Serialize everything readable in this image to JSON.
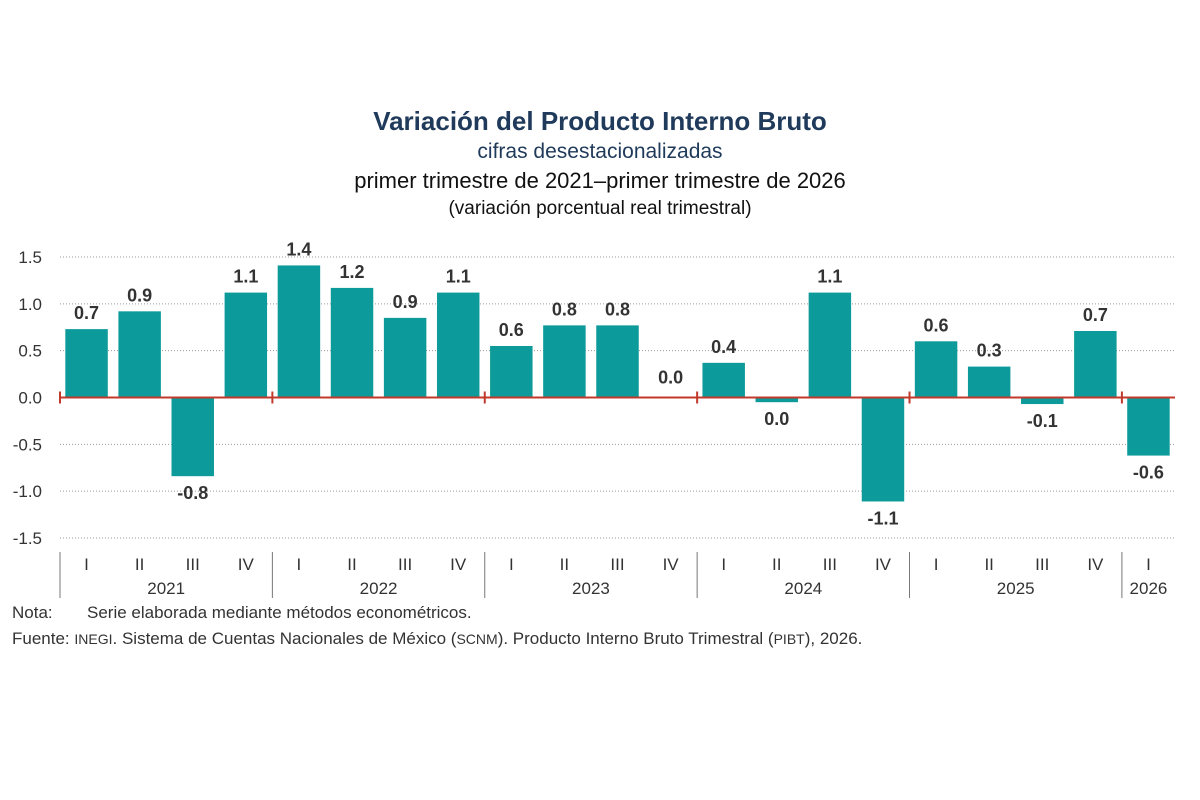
{
  "titles": {
    "title": "Variación del Producto Interno Bruto",
    "subtitle": "cifras desestacionalizadas",
    "period": "primer trimestre de 2021–primer trimestre de 2026",
    "unit": "(variación porcentual real trimestral)"
  },
  "chart_data": {
    "type": "bar",
    "categories": [
      "I",
      "II",
      "III",
      "IV",
      "I",
      "II",
      "III",
      "IV",
      "I",
      "II",
      "III",
      "IV",
      "I",
      "II",
      "III",
      "IV",
      "I",
      "II",
      "III",
      "IV",
      "I"
    ],
    "years": [
      "2021",
      "2022",
      "2023",
      "2024",
      "2025",
      "2026"
    ],
    "values": [
      0.73,
      0.92,
      -0.84,
      1.12,
      1.41,
      1.17,
      0.85,
      1.12,
      0.55,
      0.77,
      0.77,
      0.0,
      0.37,
      -0.05,
      1.12,
      -1.11,
      0.6,
      0.33,
      -0.07,
      0.71,
      -0.62
    ],
    "labels": [
      "0.7",
      "0.9",
      "-0.8",
      "1.1",
      "1.4",
      "1.2",
      "0.9",
      "1.1",
      "0.6",
      "0.8",
      "0.8",
      "0.0",
      "0.4",
      "0.0",
      "1.1",
      "-1.1",
      "0.6",
      "0.3",
      "-0.1",
      "0.7",
      "-0.6"
    ],
    "ylim": [
      -1.5,
      1.5
    ],
    "yticks": [
      "1.5",
      "1.0",
      "0.5",
      "0.0",
      "-0.5",
      "-1.0",
      "-1.5"
    ],
    "grid": true,
    "bar_color": "#0d9a9a",
    "zero_line_color": "#c0392b"
  },
  "notes": {
    "nota_label": "Nota:",
    "nota_text": "Serie elaborada mediante métodos econométricos.",
    "fuente_label": "Fuente:",
    "fuente_a": "INEGI",
    "fuente_b": ". Sistema de Cuentas Nacionales de México (",
    "fuente_c": "SCNM",
    "fuente_d": "). Producto Interno Bruto Trimestral (",
    "fuente_e": "PIBT",
    "fuente_f": "), 2026."
  }
}
